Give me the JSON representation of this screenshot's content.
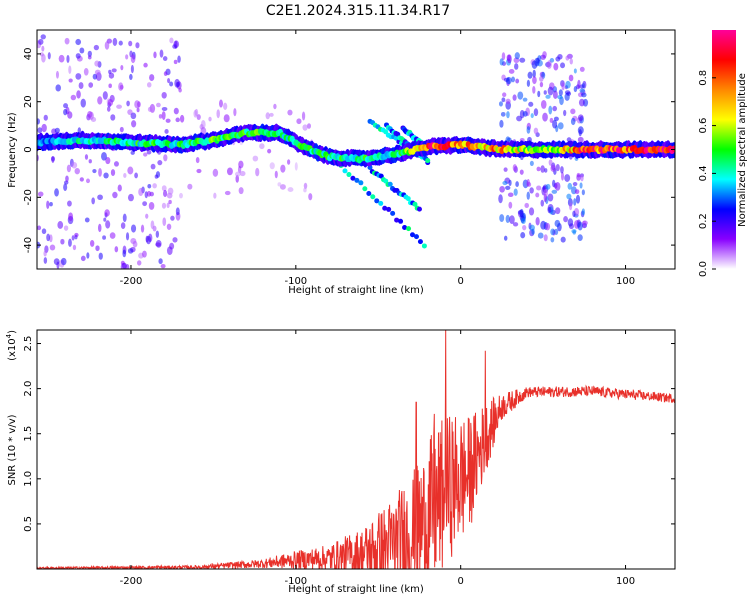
{
  "title": "C2E1.2024.315.11.34.R17",
  "chart_data": [
    {
      "type": "heatmap",
      "title": "C2E1.2024.315.11.34.R17",
      "xlabel": "Height of straight line (km)",
      "ylabel": "Frequency (Hz)",
      "xlim": [
        -257,
        130
      ],
      "ylim": [
        -50,
        50
      ],
      "xticks": [
        -200,
        -100,
        0,
        100
      ],
      "xtick_labels": [
        "-200",
        "-100",
        "0",
        "100"
      ],
      "yticks": [
        -40,
        -20,
        0,
        20,
        40
      ],
      "ytick_labels": [
        "-40",
        "-20",
        "0",
        "20",
        "40"
      ],
      "colorbar": {
        "label": "Normalized spectral amplitude",
        "range": [
          0,
          1
        ],
        "ticks": [
          0.0,
          0.2,
          0.4,
          0.6,
          0.8
        ],
        "tick_labels": [
          "0.0",
          "0.2",
          "0.4",
          "0.6",
          "0.8"
        ],
        "colors": [
          "#ffffff",
          "#8800ff",
          "#0000ff",
          "#00ffff",
          "#00ff00",
          "#ffff00",
          "#ff8800",
          "#ff0000",
          "#ff0099"
        ]
      },
      "ridge": [
        {
          "x": -257,
          "y": 3,
          "amp": 0.3
        },
        {
          "x": -230,
          "y": 4,
          "amp": 0.4
        },
        {
          "x": -200,
          "y": 3,
          "amp": 0.45
        },
        {
          "x": -170,
          "y": 2,
          "amp": 0.45
        },
        {
          "x": -150,
          "y": 4,
          "amp": 0.5
        },
        {
          "x": -130,
          "y": 7,
          "amp": 0.5
        },
        {
          "x": -110,
          "y": 7,
          "amp": 0.45
        },
        {
          "x": -95,
          "y": 1,
          "amp": 0.45
        },
        {
          "x": -80,
          "y": -3,
          "amp": 0.45
        },
        {
          "x": -60,
          "y": -4,
          "amp": 0.45
        },
        {
          "x": -40,
          "y": -2,
          "amp": 0.4
        },
        {
          "x": -20,
          "y": 1,
          "amp": 0.85
        },
        {
          "x": 0,
          "y": 2,
          "amp": 0.8
        },
        {
          "x": 25,
          "y": 0,
          "amp": 0.7
        },
        {
          "x": 50,
          "y": 0,
          "amp": 0.55
        },
        {
          "x": 76,
          "y": 0,
          "amp": 0.85
        },
        {
          "x": 130,
          "y": 0,
          "amp": 0.9
        }
      ],
      "scatter_regions": [
        {
          "x_range": [
            -257,
            -170
          ],
          "y_range": [
            -50,
            48
          ],
          "density": "high",
          "amp": 0.15
        },
        {
          "x_range": [
            -170,
            -90
          ],
          "y_range": [
            -20,
            20
          ],
          "density": "low",
          "amp": 0.08
        },
        {
          "x_range": [
            24,
            76
          ],
          "y_range": [
            -38,
            40
          ],
          "density": "high",
          "amp": 0.2
        }
      ],
      "arms": [
        {
          "x": [
            -55,
            -20
          ],
          "y": [
            12,
            -5
          ]
        },
        {
          "x": [
            -45,
            -20
          ],
          "y": [
            10,
            -5
          ]
        },
        {
          "x": [
            -35,
            -20
          ],
          "y": [
            9,
            0
          ]
        },
        {
          "x": [
            -75,
            -22
          ],
          "y": [
            -5,
            -40
          ]
        },
        {
          "x": [
            -55,
            -25
          ],
          "y": [
            -8,
            -25
          ]
        }
      ]
    },
    {
      "type": "line",
      "xlabel": "Height of straight line (km)",
      "ylabel": "SNR (10 * v/v)",
      "multiplier": "(x10",
      "multiplier_exp": "4",
      "xlim": [
        -257,
        130
      ],
      "ylim": [
        0,
        2.65
      ],
      "xticks": [
        -200,
        -100,
        0,
        100
      ],
      "xtick_labels": [
        "-200",
        "-100",
        "0",
        "100"
      ],
      "yticks": [
        0.5,
        1.0,
        1.5,
        2.0,
        2.5
      ],
      "ytick_labels": [
        "0.5",
        "1.0",
        "1.5",
        "2.0",
        "2.5"
      ],
      "color": "#e8302a",
      "envelope": [
        {
          "x": -257,
          "y": 0.01,
          "noise": 0.01
        },
        {
          "x": -160,
          "y": 0.02,
          "noise": 0.02
        },
        {
          "x": -120,
          "y": 0.06,
          "noise": 0.05
        },
        {
          "x": -100,
          "y": 0.1,
          "noise": 0.1
        },
        {
          "x": -80,
          "y": 0.12,
          "noise": 0.15
        },
        {
          "x": -60,
          "y": 0.16,
          "noise": 0.3
        },
        {
          "x": -40,
          "y": 0.28,
          "noise": 0.55
        },
        {
          "x": -25,
          "y": 0.45,
          "noise": 0.75
        },
        {
          "x": -15,
          "y": 0.7,
          "noise": 0.9
        },
        {
          "x": -5,
          "y": 0.95,
          "noise": 0.8
        },
        {
          "x": 5,
          "y": 1.05,
          "noise": 0.65
        },
        {
          "x": 15,
          "y": 1.45,
          "noise": 0.4
        },
        {
          "x": 25,
          "y": 1.8,
          "noise": 0.15
        },
        {
          "x": 40,
          "y": 1.96,
          "noise": 0.06
        },
        {
          "x": 80,
          "y": 1.97,
          "noise": 0.06
        },
        {
          "x": 130,
          "y": 1.89,
          "noise": 0.05
        }
      ],
      "peaks": [
        {
          "x": -9,
          "y": 2.65
        },
        {
          "x": 15,
          "y": 2.42
        },
        {
          "x": -27,
          "y": 1.85
        },
        {
          "x": -16,
          "y": 1.72
        }
      ]
    }
  ]
}
